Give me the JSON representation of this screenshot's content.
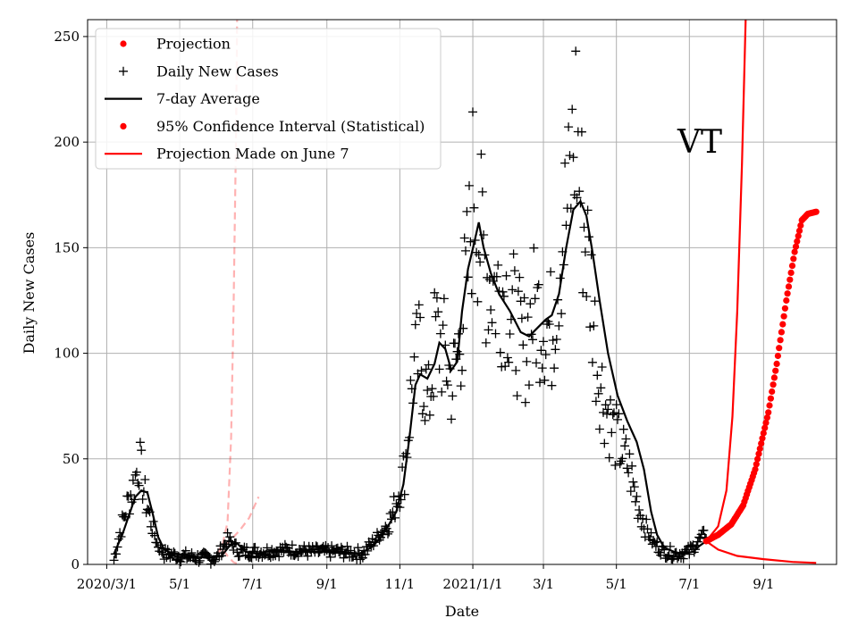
{
  "chart_data": {
    "type": "line",
    "title": "",
    "xlabel": "Date",
    "ylabel": "Daily New Cases",
    "ylim": [
      0,
      258
    ],
    "yticks": [
      0,
      50,
      100,
      150,
      200,
      250
    ],
    "xticks": [
      {
        "label": "2020/3/1",
        "date": "2020-03-01"
      },
      {
        "label": "5/1",
        "date": "2020-05-01"
      },
      {
        "label": "7/1",
        "date": "2020-07-01"
      },
      {
        "label": "9/1",
        "date": "2020-09-01"
      },
      {
        "label": "11/1",
        "date": "2020-11-01"
      },
      {
        "label": "2021/1/1",
        "date": "2021-01-01"
      },
      {
        "label": "3/1",
        "date": "2021-03-01"
      },
      {
        "label": "5/1",
        "date": "2021-05-01"
      },
      {
        "label": "7/1",
        "date": "2021-07-01"
      },
      {
        "label": "9/1",
        "date": "2021-09-01"
      }
    ],
    "xlim": [
      "2020-02-14",
      "2021-11-01"
    ],
    "grid": true,
    "annotation": "VT",
    "legend": {
      "placement": "top-left",
      "entries": [
        {
          "label": "Projection",
          "marker": "dot",
          "color": "#ff0000"
        },
        {
          "label": "Daily New Cases",
          "marker": "plus",
          "color": "#000000"
        },
        {
          "label": "7-day Average",
          "marker": "line",
          "color": "#000000"
        },
        {
          "label": "95% Confidence Interval (Statistical)",
          "marker": "dot",
          "color": "#ff0000"
        },
        {
          "label": "Projection Made on June 7",
          "marker": "line",
          "color": "#ff0000"
        }
      ]
    },
    "daily_new_cases_keypoints": [
      [
        "2020-03-07",
        2
      ],
      [
        "2020-03-12",
        15
      ],
      [
        "2020-03-18",
        28
      ],
      [
        "2020-03-24",
        38
      ],
      [
        "2020-03-28",
        50
      ],
      [
        "2020-04-02",
        32
      ],
      [
        "2020-04-08",
        18
      ],
      [
        "2020-04-12",
        10
      ],
      [
        "2020-04-18",
        5
      ],
      [
        "2020-05-01",
        4
      ],
      [
        "2020-05-20",
        3
      ],
      [
        "2020-06-01",
        3
      ],
      [
        "2020-06-10",
        12
      ],
      [
        "2020-06-20",
        6
      ],
      [
        "2020-07-10",
        6
      ],
      [
        "2020-08-01",
        7
      ],
      [
        "2020-08-20",
        6
      ],
      [
        "2020-09-10",
        6
      ],
      [
        "2020-10-01",
        5
      ],
      [
        "2020-10-15",
        14
      ],
      [
        "2020-10-25",
        22
      ],
      [
        "2020-11-05",
        45
      ],
      [
        "2020-11-12",
        90
      ],
      [
        "2020-11-18",
        100
      ],
      [
        "2020-11-25",
        75
      ],
      [
        "2020-12-01",
        110
      ],
      [
        "2020-12-08",
        100
      ],
      [
        "2020-12-15",
        85
      ],
      [
        "2020-12-22",
        110
      ],
      [
        "2020-12-28",
        140
      ],
      [
        "2021-01-02",
        185
      ],
      [
        "2021-01-06",
        160
      ],
      [
        "2021-01-12",
        140
      ],
      [
        "2021-01-20",
        130
      ],
      [
        "2021-01-28",
        130
      ],
      [
        "2021-02-05",
        115
      ],
      [
        "2021-02-12",
        100
      ],
      [
        "2021-02-20",
        120
      ],
      [
        "2021-02-28",
        118
      ],
      [
        "2021-03-08",
        110
      ],
      [
        "2021-03-15",
        150
      ],
      [
        "2021-03-22",
        170
      ],
      [
        "2021-03-28",
        210
      ],
      [
        "2021-04-01",
        175
      ],
      [
        "2021-04-05",
        155
      ],
      [
        "2021-04-10",
        130
      ],
      [
        "2021-04-15",
        95
      ],
      [
        "2021-04-20",
        80
      ],
      [
        "2021-04-27",
        65
      ],
      [
        "2021-05-05",
        55
      ],
      [
        "2021-05-12",
        45
      ],
      [
        "2021-05-18",
        30
      ],
      [
        "2021-05-25",
        18
      ],
      [
        "2021-06-01",
        10
      ],
      [
        "2021-06-10",
        6
      ],
      [
        "2021-06-20",
        5
      ],
      [
        "2021-07-01",
        6
      ],
      [
        "2021-07-10",
        12
      ],
      [
        "2021-07-15",
        15
      ]
    ],
    "seven_day_average": [
      [
        "2020-03-07",
        5
      ],
      [
        "2020-03-14",
        14
      ],
      [
        "2020-03-20",
        24
      ],
      [
        "2020-03-25",
        32
      ],
      [
        "2020-03-30",
        35
      ],
      [
        "2020-04-04",
        34
      ],
      [
        "2020-04-08",
        25
      ],
      [
        "2020-04-13",
        13
      ],
      [
        "2020-04-18",
        7
      ],
      [
        "2020-04-25",
        5
      ],
      [
        "2020-05-10",
        4
      ],
      [
        "2020-05-25",
        3
      ],
      [
        "2020-06-05",
        4
      ],
      [
        "2020-06-12",
        9
      ],
      [
        "2020-06-18",
        10
      ],
      [
        "2020-06-25",
        6
      ],
      [
        "2020-07-05",
        5
      ],
      [
        "2020-07-20",
        7
      ],
      [
        "2020-08-05",
        6
      ],
      [
        "2020-08-25",
        6
      ],
      [
        "2020-09-15",
        6
      ],
      [
        "2020-09-28",
        5
      ],
      [
        "2020-10-08",
        8
      ],
      [
        "2020-10-15",
        12
      ],
      [
        "2020-10-22",
        18
      ],
      [
        "2020-10-29",
        25
      ],
      [
        "2020-11-04",
        38
      ],
      [
        "2020-11-09",
        60
      ],
      [
        "2020-11-14",
        85
      ],
      [
        "2020-11-18",
        90
      ],
      [
        "2020-11-24",
        88
      ],
      [
        "2020-11-30",
        95
      ],
      [
        "2020-12-04",
        105
      ],
      [
        "2020-12-09",
        102
      ],
      [
        "2020-12-14",
        92
      ],
      [
        "2020-12-19",
        96
      ],
      [
        "2020-12-23",
        120
      ],
      [
        "2020-12-28",
        140
      ],
      [
        "2021-01-02",
        152
      ],
      [
        "2021-01-06",
        162
      ],
      [
        "2021-01-10",
        150
      ],
      [
        "2021-01-16",
        138
      ],
      [
        "2021-01-23",
        128
      ],
      [
        "2021-02-01",
        120
      ],
      [
        "2021-02-10",
        110
      ],
      [
        "2021-02-17",
        108
      ],
      [
        "2021-02-24",
        112
      ],
      [
        "2021-03-03",
        116
      ],
      [
        "2021-03-08",
        118
      ],
      [
        "2021-03-14",
        128
      ],
      [
        "2021-03-20",
        150
      ],
      [
        "2021-03-26",
        168
      ],
      [
        "2021-04-01",
        172
      ],
      [
        "2021-04-06",
        165
      ],
      [
        "2021-04-11",
        148
      ],
      [
        "2021-04-17",
        125
      ],
      [
        "2021-04-24",
        100
      ],
      [
        "2021-05-02",
        80
      ],
      [
        "2021-05-10",
        68
      ],
      [
        "2021-05-18",
        58
      ],
      [
        "2021-05-24",
        45
      ],
      [
        "2021-05-30",
        25
      ],
      [
        "2021-06-04",
        14
      ],
      [
        "2021-06-10",
        8
      ],
      [
        "2021-06-18",
        6
      ],
      [
        "2021-06-26",
        5
      ],
      [
        "2021-07-04",
        6
      ],
      [
        "2021-07-10",
        9
      ],
      [
        "2021-07-15",
        11
      ]
    ],
    "projection": [
      [
        "2021-07-15",
        11
      ],
      [
        "2021-07-25",
        14
      ],
      [
        "2021-08-05",
        19
      ],
      [
        "2021-08-15",
        28
      ],
      [
        "2021-08-25",
        45
      ],
      [
        "2021-09-05",
        72
      ],
      [
        "2021-09-12",
        95
      ],
      [
        "2021-09-20",
        125
      ],
      [
        "2021-09-27",
        148
      ],
      [
        "2021-10-03",
        163
      ],
      [
        "2021-10-08",
        166
      ],
      [
        "2021-10-15",
        167
      ]
    ],
    "ci_upper": [
      [
        "2021-07-15",
        11
      ],
      [
        "2021-07-25",
        18
      ],
      [
        "2021-08-01",
        35
      ],
      [
        "2021-08-06",
        70
      ],
      [
        "2021-08-10",
        120
      ],
      [
        "2021-08-14",
        190
      ],
      [
        "2021-08-17",
        258
      ]
    ],
    "ci_lower": [
      [
        "2021-07-15",
        11
      ],
      [
        "2021-07-25",
        7
      ],
      [
        "2021-08-10",
        4
      ],
      [
        "2021-09-01",
        2.5
      ],
      [
        "2021-09-25",
        1.2
      ],
      [
        "2021-10-15",
        0.7
      ]
    ],
    "june7_projection_upper": [
      [
        "2020-06-01",
        5
      ],
      [
        "2020-06-06",
        10
      ],
      [
        "2020-06-10",
        20
      ],
      [
        "2020-06-13",
        60
      ],
      [
        "2020-06-15",
        120
      ],
      [
        "2020-06-17",
        200
      ],
      [
        "2020-06-18",
        258
      ]
    ],
    "june7_projection_mid": [
      [
        "2020-06-01",
        5
      ],
      [
        "2020-06-10",
        10
      ],
      [
        "2020-06-20",
        16
      ],
      [
        "2020-06-28",
        22
      ],
      [
        "2020-07-06",
        32
      ]
    ],
    "june7_projection_lower": [
      [
        "2020-06-01",
        5
      ],
      [
        "2020-06-05",
        8
      ],
      [
        "2020-06-10",
        4
      ],
      [
        "2020-06-15",
        1
      ],
      [
        "2020-06-20",
        0
      ]
    ]
  }
}
